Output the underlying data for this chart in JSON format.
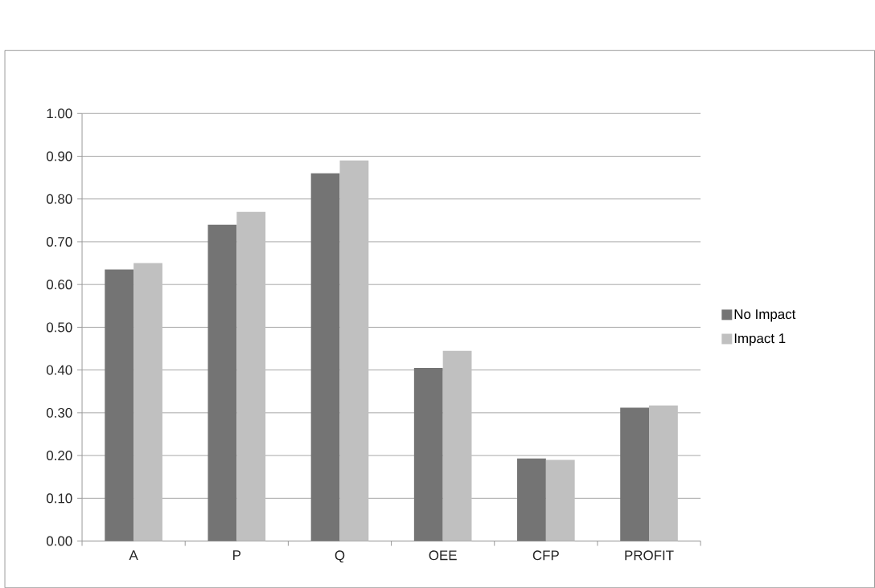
{
  "chart_data": {
    "type": "bar",
    "categories": [
      "A",
      "P",
      "Q",
      "OEE",
      "CFP",
      "PROFIT"
    ],
    "series": [
      {
        "name": "No Impact",
        "color": "#747474",
        "values": [
          0.635,
          0.74,
          0.86,
          0.405,
          0.193,
          0.312
        ]
      },
      {
        "name": "Impact 1",
        "color": "#c0c0c0",
        "values": [
          0.65,
          0.77,
          0.89,
          0.445,
          0.19,
          0.317
        ]
      }
    ],
    "ylim": [
      0,
      1
    ],
    "yticks": [
      {
        "value": 0,
        "label": "0.00"
      },
      {
        "value": 0.1,
        "label": "0.10"
      },
      {
        "value": 0.2,
        "label": "0.20"
      },
      {
        "value": 0.3,
        "label": "0.30"
      },
      {
        "value": 0.4,
        "label": "0.40"
      },
      {
        "value": 0.5,
        "label": "0.50"
      },
      {
        "value": 0.6,
        "label": "0.60"
      },
      {
        "value": 0.7,
        "label": "0.70"
      },
      {
        "value": 0.8,
        "label": "0.80"
      },
      {
        "value": 0.9,
        "label": "0.90"
      },
      {
        "value": 1,
        "label": "1.00"
      }
    ],
    "grid": "y",
    "legend": "right"
  }
}
